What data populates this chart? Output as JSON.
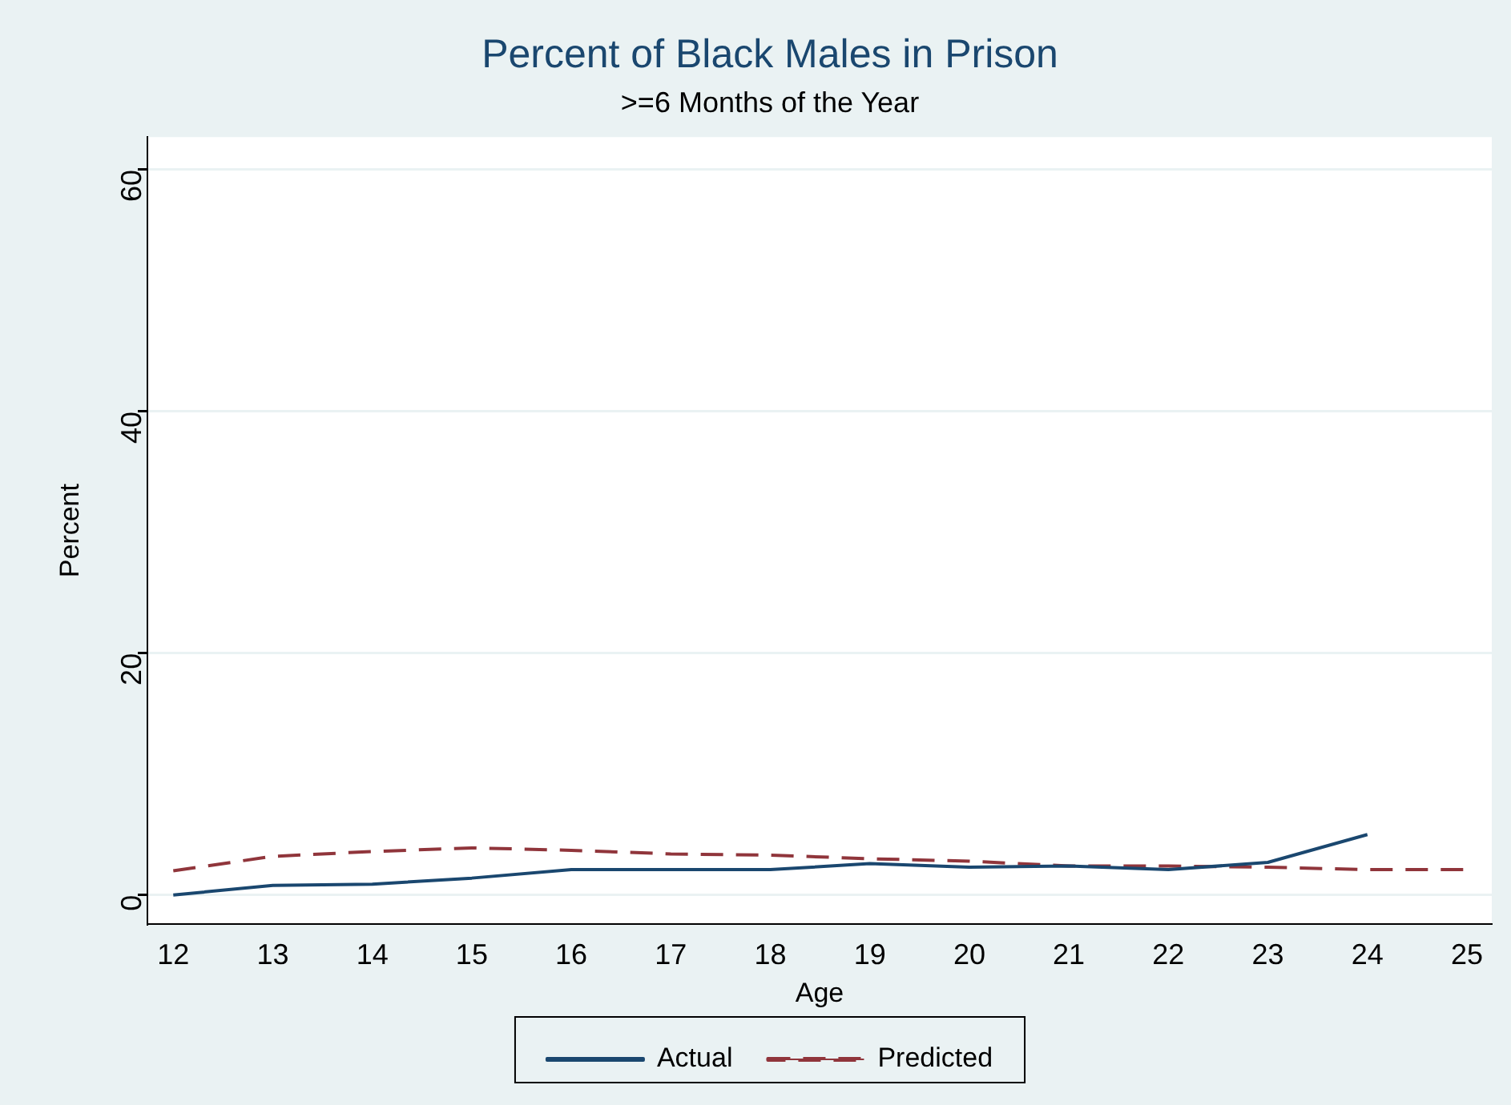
{
  "chart_data": {
    "type": "line",
    "title": "Percent of Black Males in Prison",
    "subtitle": ">=6 Months of the Year",
    "xlabel": "Age",
    "ylabel": "Percent",
    "x": [
      12,
      13,
      14,
      15,
      16,
      17,
      18,
      19,
      20,
      21,
      22,
      23,
      24,
      25
    ],
    "series": [
      {
        "name": "Actual",
        "color": "#1a476f",
        "line_style": "solid",
        "values": [
          0,
          0.8,
          0.9,
          1.4,
          2.1,
          2.1,
          2.1,
          2.6,
          2.3,
          2.4,
          2.1,
          2.7,
          5.0,
          null
        ]
      },
      {
        "name": "Predicted",
        "color": "#90353b",
        "line_style": "dashed",
        "values": [
          2.0,
          3.2,
          3.6,
          3.9,
          3.7,
          3.4,
          3.3,
          3.0,
          2.8,
          2.4,
          2.4,
          2.3,
          2.1,
          2.1
        ]
      }
    ],
    "xlim": [
      11.74,
      25.25
    ],
    "xticks": [
      12,
      13,
      14,
      15,
      16,
      17,
      18,
      19,
      20,
      21,
      22,
      23,
      24,
      25
    ],
    "ylim": [
      -2.4,
      62.7
    ],
    "yticks": [
      0,
      20,
      40,
      60
    ],
    "grid": "y",
    "legend": "bottom",
    "marker": "none"
  }
}
